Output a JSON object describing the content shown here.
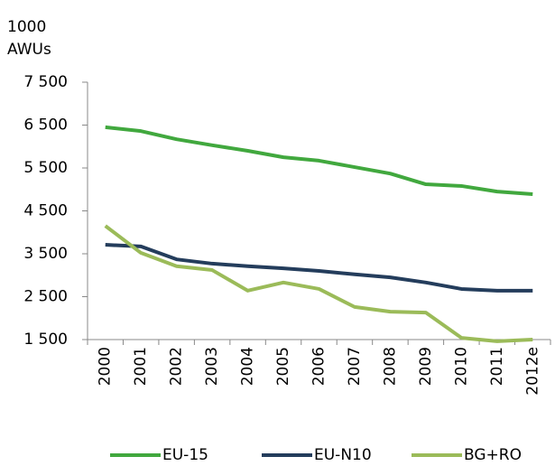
{
  "chart_data": {
    "type": "line",
    "y_unit": "1000",
    "y_label": "AWUs",
    "categories": [
      "2000",
      "2001",
      "2002",
      "2003",
      "2004",
      "2005",
      "2006",
      "2007",
      "2008",
      "2009",
      "2010",
      "2011",
      "2012e"
    ],
    "series": [
      {
        "name": "EU-15",
        "color": "#41a83e",
        "values": [
          6450,
          6360,
          6170,
          6030,
          5900,
          5750,
          5670,
          5520,
          5370,
          5120,
          5080,
          4950,
          4890
        ]
      },
      {
        "name": "EU-N10",
        "color": "#243d5c",
        "values": [
          3710,
          3670,
          3370,
          3270,
          3210,
          3160,
          3100,
          3020,
          2950,
          2830,
          2680,
          2640,
          2640
        ]
      },
      {
        "name": "BG+RO",
        "color": "#9bbb59",
        "values": [
          4150,
          3520,
          3210,
          3120,
          2640,
          2830,
          2680,
          2260,
          2150,
          2130,
          1540,
          1460,
          1500
        ]
      }
    ],
    "ylim": [
      1500,
      7500
    ],
    "yticks": [
      {
        "value": 1500,
        "label": "1 500"
      },
      {
        "value": 2500,
        "label": "2 500"
      },
      {
        "value": 3500,
        "label": "3 500"
      },
      {
        "value": 4500,
        "label": "4 500"
      },
      {
        "value": 5500,
        "label": "5 500"
      },
      {
        "value": 6500,
        "label": "6 500"
      },
      {
        "value": 7500,
        "label": "7 500"
      }
    ],
    "grid": false,
    "legend": "bottom"
  }
}
